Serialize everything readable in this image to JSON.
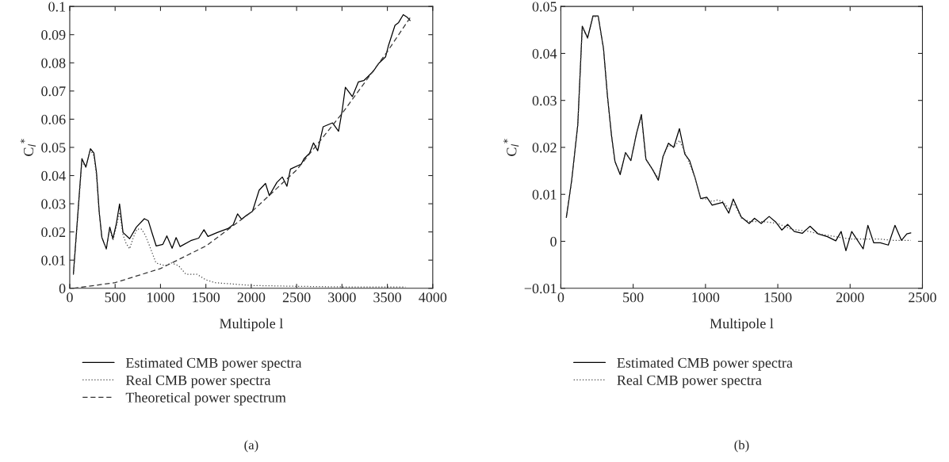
{
  "chart_data": [
    {
      "type": "line",
      "xlabel": "Multipole l",
      "ylabel": "C$_{l}$$^{*}$",
      "annotations": [
        "(a)"
      ],
      "legend": "bottom",
      "xlim": [
        0,
        4000
      ],
      "xticks": [
        0,
        500,
        1000,
        1500,
        2000,
        2500,
        3000,
        3500,
        4000
      ],
      "ylim": [
        0,
        0.1
      ],
      "yticks": [
        0,
        0.01,
        0.02,
        0.03,
        0.04,
        0.05,
        0.06,
        0.07,
        0.08,
        0.09,
        0.1
      ],
      "series": [
        {
          "name": "Estimated CMB power spectra",
          "color": "#000000",
          "line_style": "solid",
          "x": [
            40,
            134,
            178,
            216,
            228,
            266,
            295,
            324,
            354,
            403,
            441,
            476,
            514,
            549,
            587,
            660,
            734,
            822,
            865,
            909,
            953,
            1026,
            1070,
            1128,
            1172,
            1216,
            1333,
            1421,
            1479,
            1523,
            1626,
            1743,
            1801,
            1849,
            1893,
            1947,
            2013,
            2087,
            2157,
            2199,
            2283,
            2342,
            2393,
            2432,
            2552,
            2582,
            2642,
            2686,
            2732,
            2792,
            2896,
            2962,
            3001,
            3037,
            3114,
            3180,
            3240,
            3345,
            3405,
            3480,
            3510,
            3584,
            3624,
            3675,
            3718,
            3750
          ],
          "values": [
            0.005,
            0.046,
            0.043,
            0.048,
            0.0495,
            0.048,
            0.041,
            0.0273,
            0.018,
            0.014,
            0.0217,
            0.0176,
            0.023,
            0.0299,
            0.0198,
            0.0176,
            0.0217,
            0.0247,
            0.024,
            0.0194,
            0.015,
            0.0156,
            0.0186,
            0.0142,
            0.018,
            0.0148,
            0.0169,
            0.0178,
            0.0208,
            0.0184,
            0.0198,
            0.0212,
            0.0226,
            0.0264,
            0.0245,
            0.0259,
            0.0273,
            0.0348,
            0.0372,
            0.0329,
            0.0376,
            0.0395,
            0.0362,
            0.0423,
            0.0441,
            0.046,
            0.0479,
            0.0516,
            0.0488,
            0.0573,
            0.0587,
            0.0557,
            0.0629,
            0.0713,
            0.068,
            0.0732,
            0.0737,
            0.077,
            0.0798,
            0.0821,
            0.0859,
            0.0933,
            0.0943,
            0.0971,
            0.0962,
            0.095
          ]
        },
        {
          "name": "Real CMB power spectra",
          "color": "#444444",
          "line_style": "dotted",
          "x": [
            40,
            134,
            178,
            216,
            228,
            266,
            295,
            324,
            354,
            403,
            441,
            476,
            514,
            549,
            587,
            620,
            660,
            700,
            740,
            790,
            830,
            880,
            950,
            1050,
            1120,
            1200,
            1280,
            1400,
            1500,
            1600,
            1800,
            2000,
            2500,
            3000,
            3700
          ],
          "values": [
            0.005,
            0.045,
            0.043,
            0.048,
            0.049,
            0.047,
            0.04,
            0.027,
            0.018,
            0.014,
            0.021,
            0.017,
            0.022,
            0.027,
            0.019,
            0.016,
            0.014,
            0.018,
            0.021,
            0.021,
            0.019,
            0.015,
            0.009,
            0.008,
            0.009,
            0.008,
            0.005,
            0.005,
            0.003,
            0.002,
            0.0015,
            0.001,
            0.0007,
            0.0005,
            0.0005
          ]
        },
        {
          "name": "Theoretical power spectrum",
          "color": "#333333",
          "line_style": "dashed",
          "x": [
            40,
            500,
            1000,
            1500,
            2000,
            2500,
            3000,
            3500,
            3750
          ],
          "values": [
            0,
            0.002,
            0.007,
            0.015,
            0.027,
            0.042,
            0.062,
            0.084,
            0.096
          ]
        }
      ]
    },
    {
      "type": "line",
      "xlabel": "Multipole l",
      "ylabel": "C$_{l}$$^{*}$",
      "annotations": [
        "(b)"
      ],
      "legend": "bottom",
      "xlim": [
        0,
        2500
      ],
      "xticks": [
        0,
        500,
        1000,
        1500,
        2000,
        2500
      ],
      "ylim": [
        -0.01,
        0.05
      ],
      "yticks": [
        {
          "value": -0.01,
          "label": "−0.01"
        },
        0,
        0.01,
        0.02,
        0.03,
        0.04,
        0.05
      ],
      "series": [
        {
          "name": "Estimated CMB power spectra",
          "color": "#000000",
          "line_style": "solid",
          "x": [
            38,
            75,
            117,
            148,
            185,
            222,
            258,
            295,
            322,
            350,
            374,
            410,
            447,
            484,
            524,
            557,
            588,
            634,
            674,
            707,
            744,
            780,
            820,
            857,
            890,
            927,
            967,
            1009,
            1046,
            1082,
            1119,
            1161,
            1192,
            1247,
            1302,
            1339,
            1385,
            1440,
            1486,
            1528,
            1568,
            1614,
            1669,
            1723,
            1778,
            1843,
            1901,
            1938,
            1971,
            2011,
            2090,
            2123,
            2163,
            2209,
            2264,
            2310,
            2355,
            2392,
            2420
          ],
          "values": [
            0.0051,
            0.013,
            0.0248,
            0.0458,
            0.0433,
            0.048,
            0.048,
            0.041,
            0.031,
            0.0226,
            0.017,
            0.0142,
            0.0189,
            0.0172,
            0.0231,
            0.027,
            0.0175,
            0.0153,
            0.013,
            0.0181,
            0.0209,
            0.02,
            0.024,
            0.0186,
            0.0172,
            0.0136,
            0.0091,
            0.0094,
            0.0077,
            0.008,
            0.0083,
            0.006,
            0.009,
            0.0052,
            0.0038,
            0.0049,
            0.0038,
            0.0053,
            0.0041,
            0.0024,
            0.0036,
            0.0021,
            0.0017,
            0.0032,
            0.0016,
            0.001,
            0.0001,
            0.0021,
            -0.002,
            0.0021,
            -0.0016,
            0.0034,
            -0.0003,
            -0.0003,
            -0.0008,
            0.0034,
            0.0002,
            0.0016,
            0.0018
          ]
        },
        {
          "name": "Real CMB power spectra",
          "color": "#444444",
          "line_style": "dotted",
          "x": [
            38,
            75,
            117,
            148,
            185,
            222,
            258,
            295,
            322,
            350,
            374,
            410,
            447,
            484,
            524,
            557,
            588,
            634,
            674,
            707,
            744,
            780,
            820,
            857,
            890,
            927,
            967,
            1004,
            1046,
            1083,
            1119,
            1161,
            1200,
            1247,
            1302,
            1400,
            1500,
            1600,
            1700,
            1800,
            1900,
            2000,
            2100,
            2200,
            2300,
            2420
          ],
          "values": [
            0.0051,
            0.013,
            0.0248,
            0.0455,
            0.0433,
            0.0478,
            0.0478,
            0.041,
            0.031,
            0.0226,
            0.017,
            0.0145,
            0.0189,
            0.0172,
            0.0231,
            0.0265,
            0.0175,
            0.0153,
            0.0135,
            0.0181,
            0.0205,
            0.02,
            0.0215,
            0.019,
            0.0165,
            0.0136,
            0.0091,
            0.009,
            0.0085,
            0.0088,
            0.0085,
            0.007,
            0.008,
            0.005,
            0.0042,
            0.0042,
            0.0038,
            0.0025,
            0.0022,
            0.0015,
            0.001,
            0.0005,
            0.0005,
            0.0005,
            0.0002,
            0.0002
          ]
        }
      ]
    }
  ]
}
